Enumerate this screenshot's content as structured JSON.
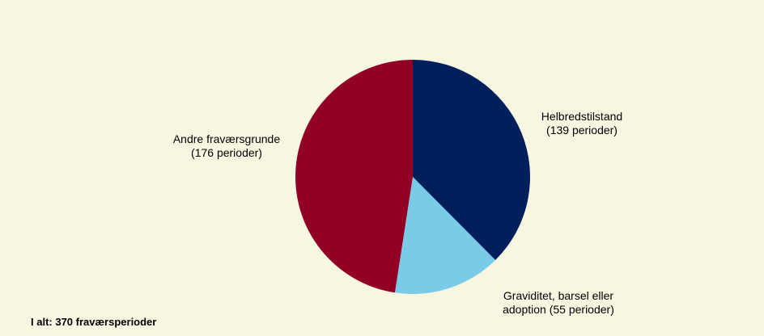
{
  "chart_data": {
    "type": "pie",
    "slices": [
      {
        "name": "Helbredstilstand",
        "label_lines": [
          "Helbredstilstand",
          "(139 perioder)"
        ],
        "value": 139,
        "color": "#001f5b"
      },
      {
        "name": "Graviditet, barsel eller adoption",
        "label_lines": [
          "Graviditet, barsel eller",
          "adoption  (55 perioder)"
        ],
        "value": 55,
        "color": "#79cbe8"
      },
      {
        "name": "Andre fraværsgrunde",
        "label_lines": [
          "Andre fraværsgrunde",
          "(176 perioder)"
        ],
        "value": 176,
        "color": "#930026"
      }
    ],
    "start_angle_deg": 0,
    "direction": "clockwise",
    "footnote": "I alt: 370 fraværsperioder"
  },
  "colors": {
    "background": "#f7f6e1"
  }
}
